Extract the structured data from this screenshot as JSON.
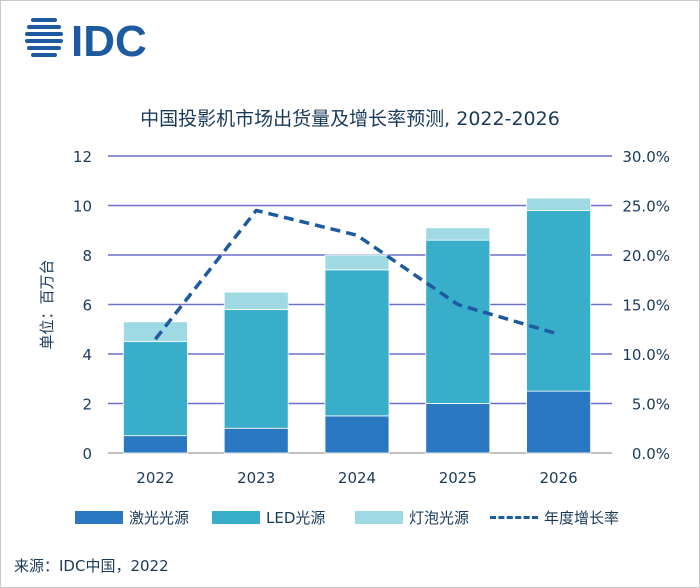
{
  "logo_text": "IDC",
  "title": "中国投影机市场出货量及增长率预测, 2022-2026",
  "source": "来源：IDC中国，2022",
  "colors": {
    "laser": "#2a78c2",
    "led": "#38aecb",
    "lamp": "#9fd9e4",
    "growth": "#1e5aa0",
    "grid": "#6f6fd0",
    "logo": "#1e5aa0"
  },
  "chart_data": {
    "type": "bar",
    "stacked": true,
    "categories": [
      "2022",
      "2023",
      "2024",
      "2025",
      "2026"
    ],
    "ylabel": "单位：百万台",
    "ylim": [
      0,
      12
    ],
    "yticks": [
      "0",
      "2",
      "4",
      "6",
      "8",
      "10",
      "12"
    ],
    "y2lim": [
      0,
      30
    ],
    "y2ticks": [
      "0.0%",
      "5.0%",
      "10.0%",
      "15.0%",
      "20.0%",
      "25.0%",
      "30.0%"
    ],
    "grid": true,
    "legend_position": "bottom",
    "series": [
      {
        "name": "激光光源",
        "type": "bar",
        "axis": "left",
        "values": [
          0.7,
          1.0,
          1.5,
          2.0,
          2.5
        ]
      },
      {
        "name": "LED光源",
        "type": "bar",
        "axis": "left",
        "values": [
          3.8,
          4.8,
          5.9,
          6.6,
          7.3
        ]
      },
      {
        "name": "灯泡光源",
        "type": "bar",
        "axis": "left",
        "values": [
          0.8,
          0.7,
          0.6,
          0.5,
          0.5
        ]
      },
      {
        "name": "年度增长率",
        "type": "line",
        "style": "dashed",
        "axis": "right",
        "values": [
          11.5,
          24.5,
          22.0,
          15.0,
          12.0
        ]
      }
    ]
  }
}
